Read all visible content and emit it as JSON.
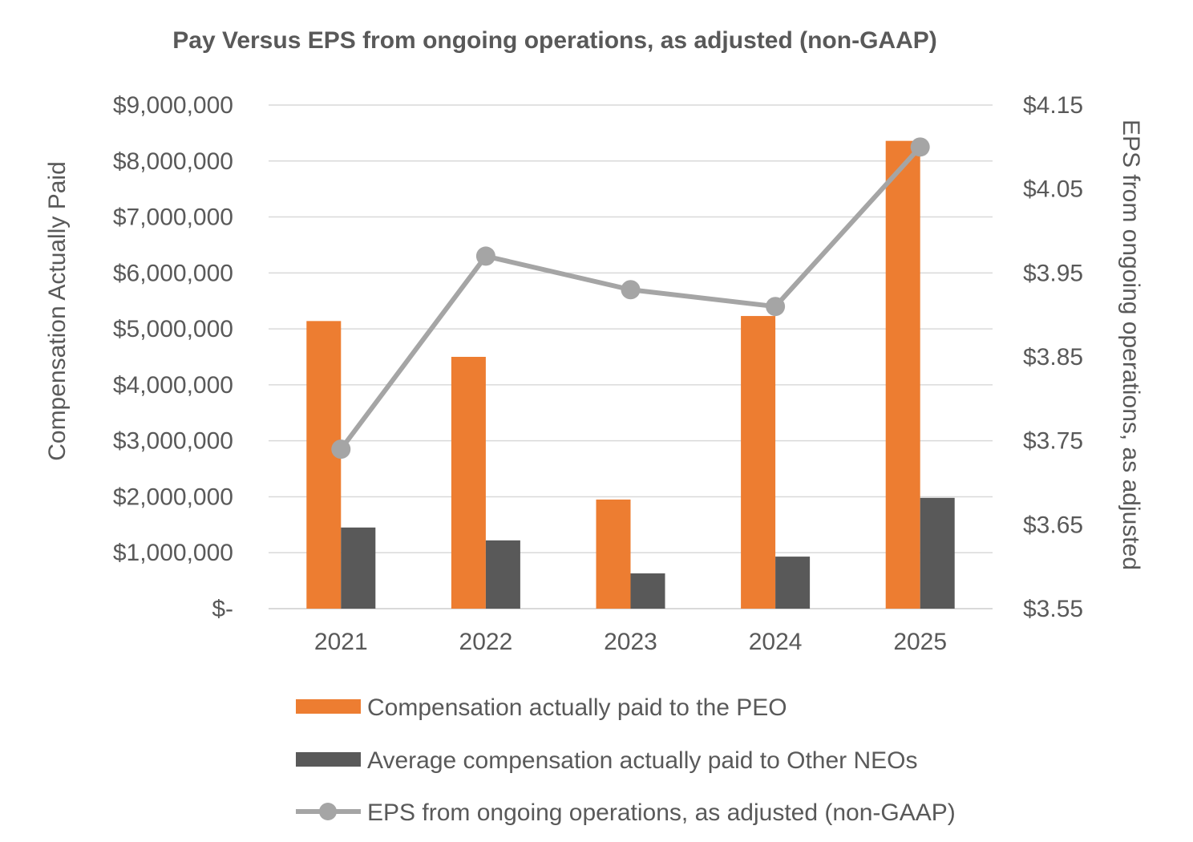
{
  "chart_data": {
    "type": "bar",
    "title": "Pay Versus EPS from ongoing operations, as adjusted (non-GAAP)",
    "categories": [
      "2021",
      "2022",
      "2023",
      "2024",
      "2025"
    ],
    "ylabel": "Compensation Actually Paid",
    "y2label": "EPS from ongoing operations, as adjusted",
    "ylim": [
      0,
      9000000
    ],
    "y2lim": [
      3.55,
      4.15
    ],
    "yticks": [
      "$-",
      "$1,000,000",
      "$2,000,000",
      "$3,000,000",
      "$4,000,000",
      "$5,000,000",
      "$6,000,000",
      "$7,000,000",
      "$8,000,000",
      "$9,000,000"
    ],
    "y2ticks": [
      "$3.55",
      "$3.65",
      "$3.75",
      "$3.85",
      "$3.95",
      "$4.05",
      "$4.15"
    ],
    "grid": true,
    "legend_position": "bottom",
    "series": [
      {
        "name": "Compensation actually paid to the PEO",
        "type": "bar",
        "axis": "left",
        "color": "#ED7D31",
        "values": [
          5140000,
          4500000,
          1950000,
          5230000,
          8360000
        ]
      },
      {
        "name": "Average compensation actually paid to Other NEOs",
        "type": "bar",
        "axis": "left",
        "color": "#595959",
        "values": [
          1450000,
          1220000,
          630000,
          930000,
          1980000
        ]
      },
      {
        "name": "EPS from ongoing operations, as adjusted (non-GAAP)",
        "type": "line",
        "axis": "right",
        "color": "#A5A5A5",
        "values": [
          3.74,
          3.97,
          3.93,
          3.91,
          4.1
        ]
      }
    ]
  }
}
